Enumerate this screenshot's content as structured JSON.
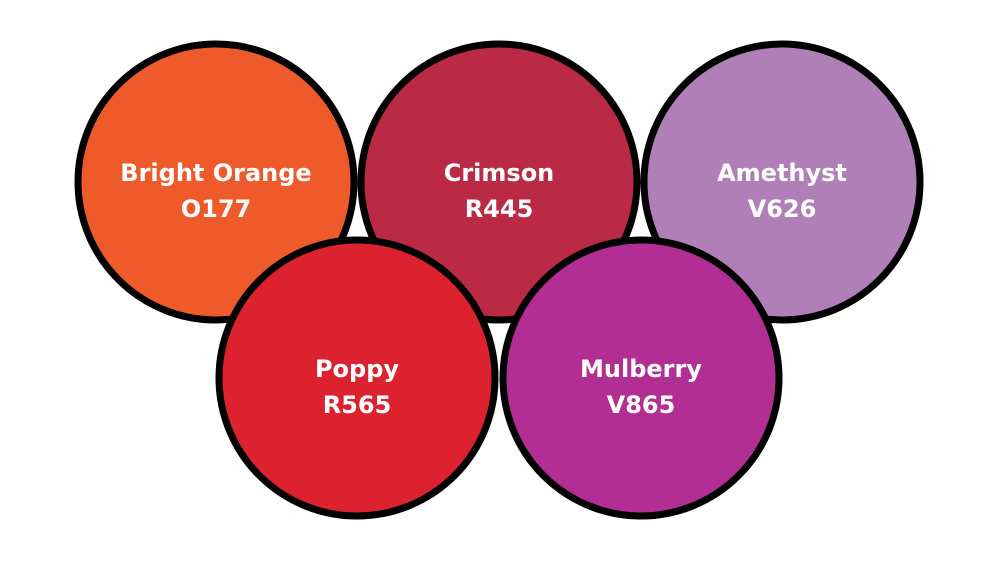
{
  "swatches": [
    {
      "name": "Bright Orange",
      "code": "O177",
      "color": "#ef5a2a"
    },
    {
      "name": "Crimson",
      "code": "R445",
      "color": "#bb2a44"
    },
    {
      "name": "Amethyst",
      "code": "V626",
      "color": "#b07fb8"
    },
    {
      "name": "Poppy",
      "code": "R565",
      "color": "#dc222e"
    },
    {
      "name": "Mulberry",
      "code": "V865",
      "color": "#b22e94"
    }
  ]
}
